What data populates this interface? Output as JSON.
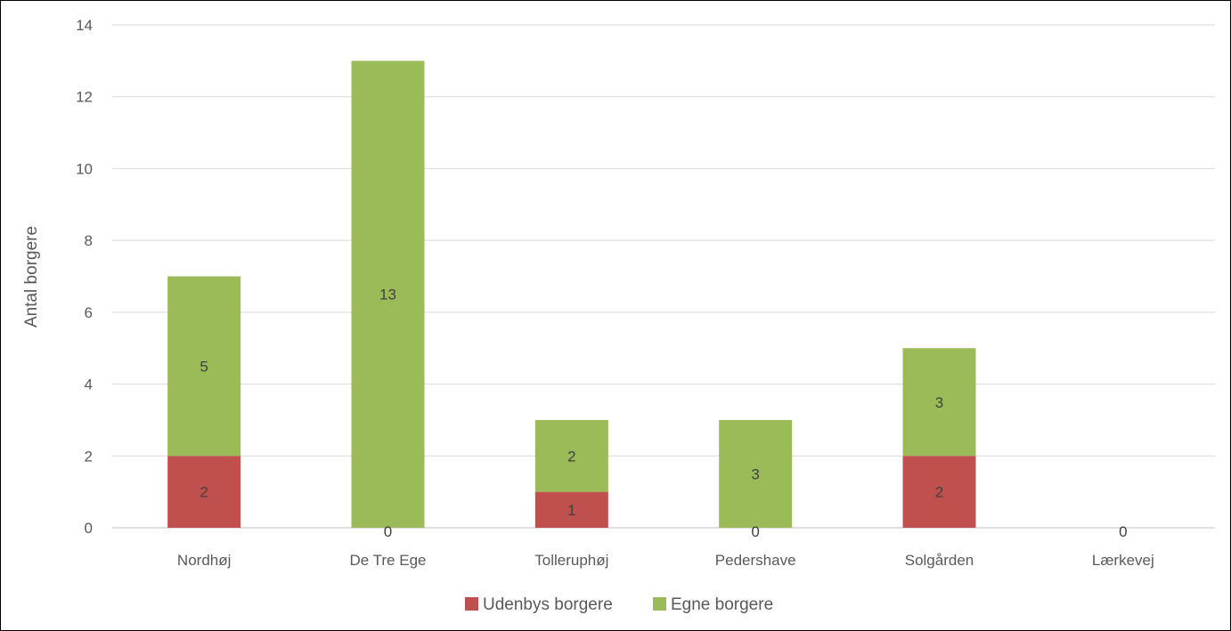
{
  "chart_data": {
    "type": "bar",
    "stacked": true,
    "title": "",
    "xlabel": "",
    "ylabel": "Antal borgere",
    "ylim": [
      0,
      14
    ],
    "yticks": [
      0,
      2,
      4,
      6,
      8,
      10,
      12,
      14
    ],
    "grid": true,
    "legend_position": "bottom",
    "categories": [
      "Nordhøj",
      "De Tre Ege",
      "Tolleruphøj",
      "Pedershave",
      "Solgården",
      "Lærkevej"
    ],
    "series": [
      {
        "name": "Udenbys borgere",
        "color": "#c0504d",
        "values": [
          2,
          0,
          1,
          0,
          2,
          0
        ]
      },
      {
        "name": "Egne borgere",
        "color": "#9bbb59",
        "values": [
          5,
          13,
          2,
          3,
          3,
          0
        ]
      }
    ]
  }
}
